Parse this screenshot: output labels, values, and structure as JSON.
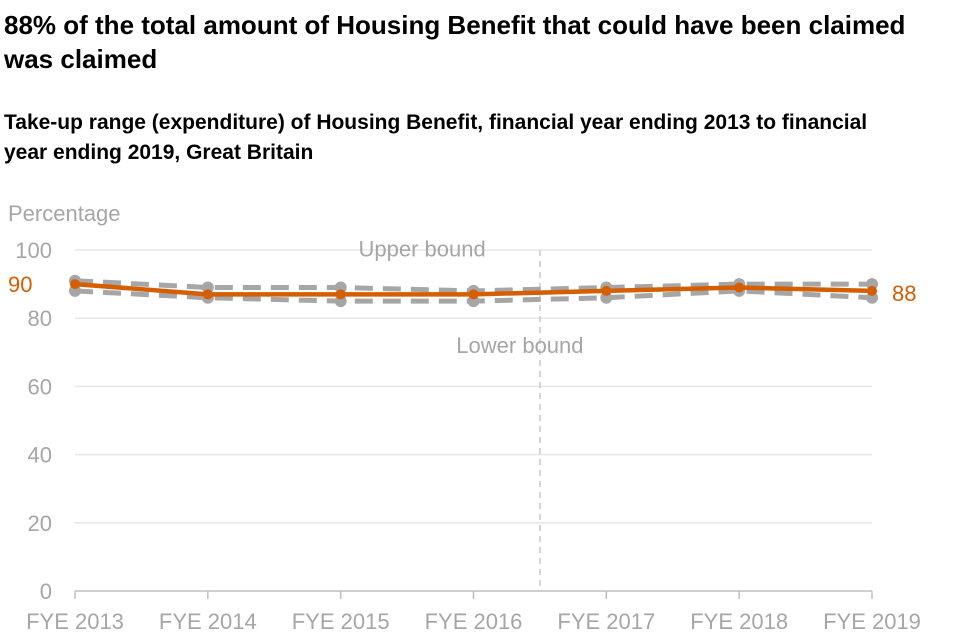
{
  "title": "88% of the total amount of Housing Benefit that could have been claimed was claimed",
  "subtitle": "Take-up range (expenditure) of Housing Benefit, financial year ending 2013 to financial year ending 2019, Great Britain",
  "chart_data": {
    "type": "line",
    "ylabel": "Percentage",
    "ylim": [
      0,
      100
    ],
    "yticks": [
      0,
      20,
      40,
      60,
      80,
      100
    ],
    "categories": [
      "FYE 2013",
      "FYE 2014",
      "FYE 2015",
      "FYE 2016",
      "FYE 2017",
      "FYE 2018",
      "FYE 2019"
    ],
    "series": [
      {
        "key": "central",
        "values": [
          90,
          87,
          87,
          87,
          88,
          89,
          88
        ],
        "color": "#d55e00",
        "style": "solid"
      },
      {
        "key": "upper",
        "name": "Upper bound",
        "values": [
          91,
          89,
          89,
          88,
          89,
          90,
          90
        ],
        "color": "#a6a6a6",
        "style": "dashed"
      },
      {
        "key": "lower",
        "name": "Lower bound",
        "values": [
          88,
          86,
          85,
          85,
          86,
          88,
          86
        ],
        "color": "#a6a6a6",
        "style": "dashed"
      }
    ],
    "start_label": "90",
    "end_label": "88",
    "series_break_after": "FYE 2016",
    "grid": true,
    "colors": {
      "central": "#d55e00",
      "bounds": "#a6a6a6",
      "grid": "#e6e6e6",
      "axis": "#bfbfbf"
    }
  }
}
